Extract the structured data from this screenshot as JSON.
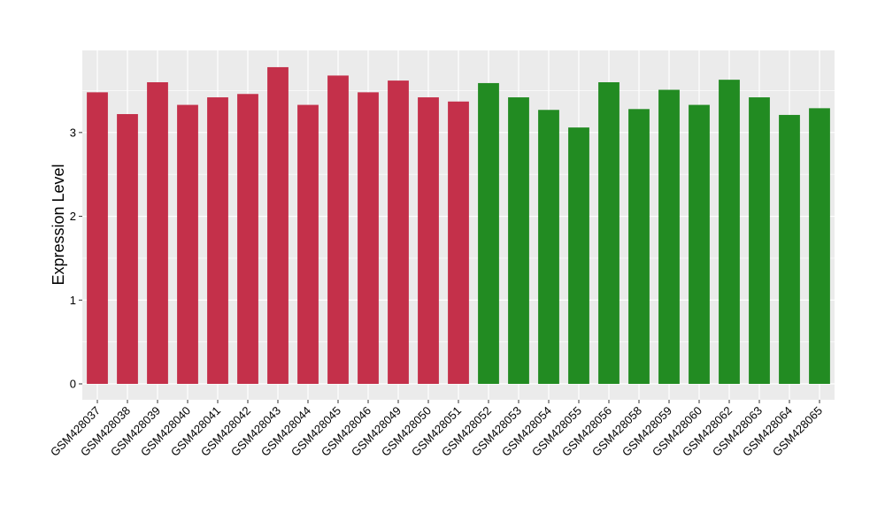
{
  "chart_data": {
    "type": "bar",
    "title": "",
    "xlabel": "",
    "ylabel": "Expression Level",
    "ylim": [
      0,
      3.98
    ],
    "yticks": [
      0,
      1,
      2,
      3
    ],
    "grid": true,
    "categories": [
      "GSM428037",
      "GSM428038",
      "GSM428039",
      "GSM428040",
      "GSM428041",
      "GSM428042",
      "GSM428043",
      "GSM428044",
      "GSM428045",
      "GSM428046",
      "GSM428049",
      "GSM428050",
      "GSM428051",
      "GSM428052",
      "GSM428053",
      "GSM428054",
      "GSM428055",
      "GSM428056",
      "GSM428058",
      "GSM428059",
      "GSM428060",
      "GSM428062",
      "GSM428063",
      "GSM428064",
      "GSM428065"
    ],
    "values": [
      3.48,
      3.22,
      3.6,
      3.33,
      3.42,
      3.46,
      3.78,
      3.33,
      3.68,
      3.48,
      3.62,
      3.42,
      3.37,
      3.59,
      3.42,
      3.27,
      3.06,
      3.6,
      3.28,
      3.51,
      3.33,
      3.63,
      3.42,
      3.21,
      3.29
    ],
    "groups": [
      "red",
      "red",
      "red",
      "red",
      "red",
      "red",
      "red",
      "red",
      "red",
      "red",
      "red",
      "red",
      "red",
      "green",
      "green",
      "green",
      "green",
      "green",
      "green",
      "green",
      "green",
      "green",
      "green",
      "green",
      "green"
    ],
    "colors": {
      "red": "#C4304A",
      "green": "#228B22",
      "panel": "#EBEBEB",
      "grid": "#FFFFFF"
    }
  }
}
